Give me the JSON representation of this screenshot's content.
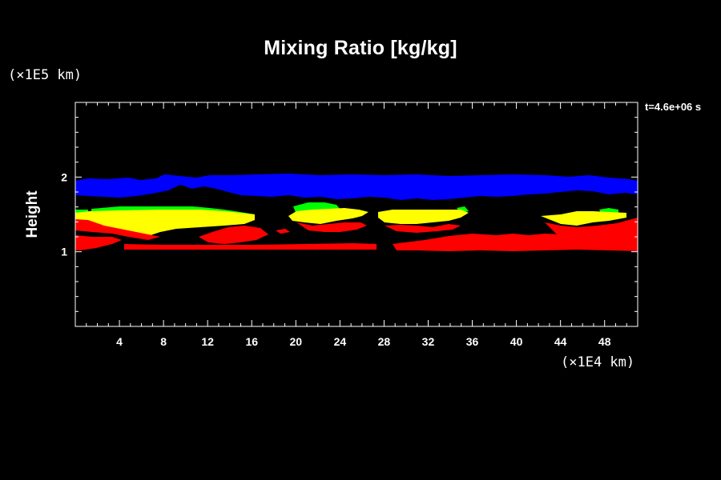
{
  "chart_data": {
    "type": "heatmap",
    "title": "Mixing Ratio [kg/kg]",
    "ylabel": "Height",
    "xlabel": "",
    "y_unit": "(×1E5 km)",
    "x_unit": "(×1E4 km)",
    "annotation": "t=4.6e+06 s",
    "xlim": [
      0,
      51
    ],
    "ylim": [
      0,
      3
    ],
    "x_ticks": [
      4,
      8,
      12,
      16,
      20,
      24,
      28,
      32,
      36,
      40,
      44,
      48
    ],
    "y_ticks": [
      1,
      2
    ],
    "grid": false,
    "colors": {
      "background": "#000000",
      "axis": "#ffffff",
      "blue": "#0000ff",
      "yellow": "#ffff00",
      "green": "#00ff00",
      "red": "#ff0000"
    },
    "regions": [
      {
        "color": "blue",
        "x_range": [
          0,
          51
        ],
        "y_range": [
          1.68,
          2.02
        ]
      },
      {
        "color": "green",
        "x_range": [
          0,
          51
        ],
        "y_range": [
          1.52,
          1.6
        ]
      },
      {
        "color": "yellow",
        "x_range": [
          0,
          51
        ],
        "y_range": [
          1.34,
          1.6
        ]
      },
      {
        "color": "red",
        "x_range": [
          0,
          51
        ],
        "y_range": [
          1.02,
          1.48
        ]
      }
    ]
  }
}
